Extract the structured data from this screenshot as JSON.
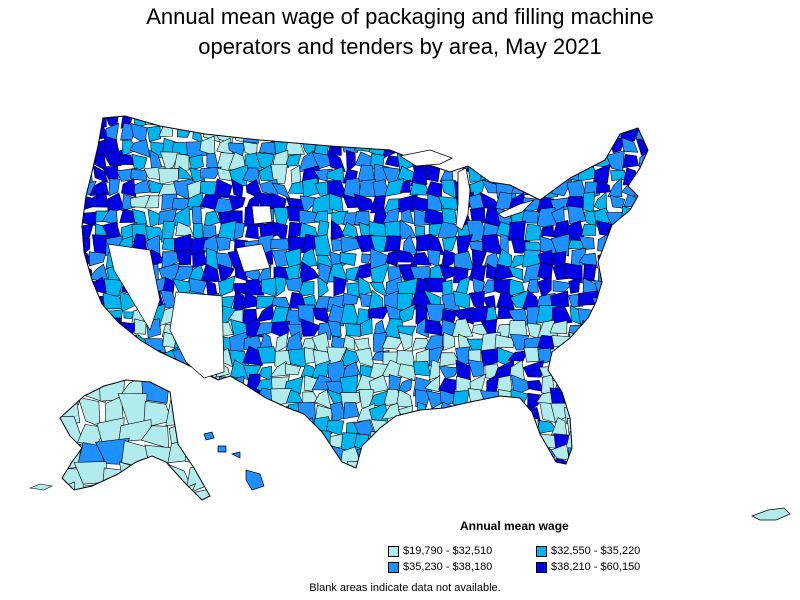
{
  "title": {
    "line1": "Annual mean wage of packaging and filling machine",
    "line2": "operators and tenders by area, May 2021"
  },
  "legend": {
    "title": "Annual mean wage",
    "items": [
      {
        "label": "$19,790 - $32,510",
        "color": "#b2ebeb"
      },
      {
        "label": "$32,550 - $35,220",
        "color": "#00b4f0"
      },
      {
        "label": "$35,230 - $38,180",
        "color": "#1e90ff"
      },
      {
        "label": "$38,210 - $60,150",
        "color": "#0000e6"
      }
    ]
  },
  "note": "Blank areas indicate data not available.",
  "map_colors": {
    "blank": "#ffffff",
    "border": "#000000"
  }
}
